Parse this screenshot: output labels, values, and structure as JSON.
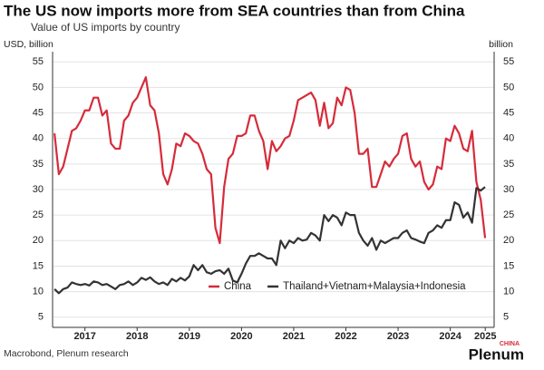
{
  "chart_data": {
    "type": "line",
    "title": "The US now imports more from SEA countries than from China",
    "subtitle": "Value of US imports by country",
    "ylabel": "USD, billion",
    "y2label": "billion",
    "source": "Macrobond, Plenum research",
    "logo": {
      "name": "Plenum",
      "tag": "CHINA"
    },
    "x": [
      2016.917,
      2017.0,
      2017.083,
      2017.167,
      2017.25,
      2017.333,
      2017.417,
      2017.5,
      2017.583,
      2017.667,
      2017.75,
      2017.833,
      2017.917,
      2018.0,
      2018.083,
      2018.167,
      2018.25,
      2018.333,
      2018.417,
      2018.5,
      2018.583,
      2018.667,
      2018.75,
      2018.833,
      2018.917,
      2019.0,
      2019.083,
      2019.167,
      2019.25,
      2019.333,
      2019.417,
      2019.5,
      2019.583,
      2019.667,
      2019.75,
      2019.833,
      2019.917,
      2020.0,
      2020.083,
      2020.167,
      2020.25,
      2020.333,
      2020.417,
      2020.5,
      2020.583,
      2020.667,
      2020.75,
      2020.833,
      2020.917,
      2021.0,
      2021.083,
      2021.167,
      2021.25,
      2021.333,
      2021.417,
      2021.5,
      2021.583,
      2021.667,
      2021.75,
      2021.833,
      2021.917,
      2022.0,
      2022.083,
      2022.167,
      2022.25,
      2022.333,
      2022.417,
      2022.5,
      2022.583,
      2022.667,
      2022.75,
      2022.833,
      2022.917,
      2023.0,
      2023.083,
      2023.167,
      2023.25,
      2023.333,
      2023.417,
      2023.5,
      2023.583,
      2023.667,
      2023.75,
      2023.833,
      2023.917,
      2024.0,
      2024.083,
      2024.167,
      2024.25,
      2024.333,
      2024.417,
      2024.5,
      2024.583,
      2024.667,
      2024.75,
      2024.833,
      2024.917,
      2025.0,
      2025.083,
      2025.167
    ],
    "series": [
      {
        "name": "China",
        "color": "#d62b3a",
        "values": [
          41,
          33,
          34.5,
          38,
          41.5,
          42,
          43.5,
          45.5,
          45.5,
          48,
          48,
          44.5,
          45.5,
          39,
          38,
          38,
          43.5,
          44.5,
          47,
          48,
          50,
          52,
          46.5,
          45.5,
          41,
          33,
          31,
          34,
          39,
          38.5,
          41,
          40.5,
          39.5,
          39,
          37,
          34,
          33,
          22.5,
          19.5,
          30.5,
          36,
          37,
          40.5,
          40.5,
          41,
          44.5,
          44.5,
          41.5,
          39.5,
          34,
          39.5,
          37.5,
          38.5,
          40,
          40.5,
          43.5,
          47.5,
          48,
          48.5,
          49,
          47.5,
          42.5,
          47,
          42,
          43,
          48,
          46.5,
          50,
          49.5,
          45,
          37,
          37,
          38,
          30.5,
          30.5,
          33,
          35.5,
          34.5,
          36,
          37,
          40.5,
          41,
          36,
          34.5,
          35.5,
          31.5,
          30,
          31,
          34.5,
          34,
          40,
          39.5,
          42.5,
          41,
          38,
          37.5,
          41.5,
          31.5,
          28,
          20.5
        ]
      },
      {
        "name": "Thailand+Vietnam+Malaysia+Indonesia",
        "color": "#333333",
        "values": [
          10.5,
          9.7,
          10.5,
          10.8,
          11.8,
          11.5,
          11.3,
          11.5,
          11.2,
          12,
          11.8,
          11.3,
          11.5,
          11,
          10.5,
          11.3,
          11.5,
          12,
          11.3,
          11.8,
          12.7,
          12.3,
          12.8,
          12,
          11.5,
          11.8,
          11.3,
          12.5,
          12,
          12.7,
          12.2,
          13,
          15.2,
          14.2,
          15.2,
          13.8,
          13.5,
          14,
          14.2,
          13.5,
          14.5,
          12.2,
          11.8,
          13.5,
          15.5,
          17,
          17,
          17.5,
          17,
          16.5,
          16.5,
          15.2,
          20,
          18.5,
          20,
          19.5,
          20.5,
          20,
          20.2,
          21.5,
          21,
          20,
          25,
          23.8,
          25,
          24.5,
          23,
          25.5,
          25,
          25,
          21.5,
          20,
          19,
          20.5,
          18.2,
          20,
          19.5,
          20,
          20.5,
          20.5,
          21.5,
          22,
          20.5,
          20.2,
          19.8,
          19.5,
          21.5,
          22,
          23,
          22.5,
          24,
          24,
          27.5,
          27,
          24.5,
          25.5,
          23.5,
          30.3,
          29.8,
          30.5
        ]
      }
    ],
    "xlim": [
      2016.88,
      2025.34
    ],
    "xticks": [
      {
        "value": 2017.5,
        "label": "2017"
      },
      {
        "value": 2018.5,
        "label": "2018"
      },
      {
        "value": 2019.5,
        "label": "2019"
      },
      {
        "value": 2020.5,
        "label": "2020"
      },
      {
        "value": 2021.5,
        "label": "2021"
      },
      {
        "value": 2022.5,
        "label": "2022"
      },
      {
        "value": 2023.5,
        "label": "2023"
      },
      {
        "value": 2024.5,
        "label": "2024"
      },
      {
        "value": 2025.17,
        "label": "2025"
      }
    ],
    "ylim": [
      3,
      57
    ],
    "yticks": [
      5,
      10,
      15,
      20,
      25,
      30,
      35,
      40,
      45,
      50,
      55
    ],
    "y2lim": [
      3,
      57
    ],
    "y2ticks": [
      5,
      10,
      15,
      20,
      25,
      30,
      35,
      40,
      45,
      50,
      55
    ],
    "grid": true,
    "legend": "bottom"
  }
}
